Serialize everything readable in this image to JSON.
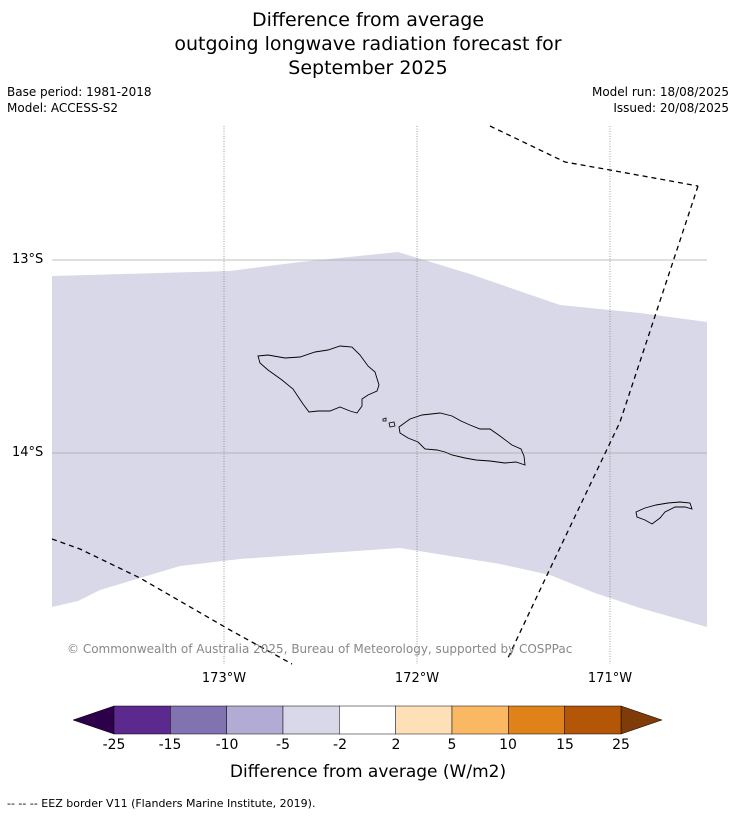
{
  "title": {
    "line1": "Difference from average",
    "line2": "outgoing longwave radiation forecast for",
    "line3": "September 2025"
  },
  "meta": {
    "base_period": "Base period: 1981-2018",
    "model": "Model: ACCESS-S2",
    "model_run": "Model run: 18/08/2025",
    "issued": "Issued: 20/08/2025"
  },
  "map": {
    "lat_labels": [
      "13°S",
      "14°S"
    ],
    "lon_labels": [
      "173°W",
      "172°W",
      "171°W"
    ],
    "anomaly_fill_color": "#d8d8e8",
    "copyright": "© Commonwealth of Australia 2025, Bureau of Meteorology, supported by COSPPac"
  },
  "colorbar": {
    "ticks": [
      "-25",
      "-15",
      "-10",
      "-5",
      "-2",
      "2",
      "5",
      "10",
      "15",
      "25"
    ],
    "colors": [
      "#5c2a8e",
      "#8073b0",
      "#b2acd4",
      "#d8d8e8",
      "#ffffff",
      "#fde0b8",
      "#fbb862",
      "#e0821a",
      "#b35608"
    ],
    "under_color": "#2d004b",
    "over_color": "#7f3b08",
    "label": "Difference from average (W/m2)"
  },
  "footer": "--  --  -- EEZ border V11 (Flanders Marine Institute, 2019)."
}
